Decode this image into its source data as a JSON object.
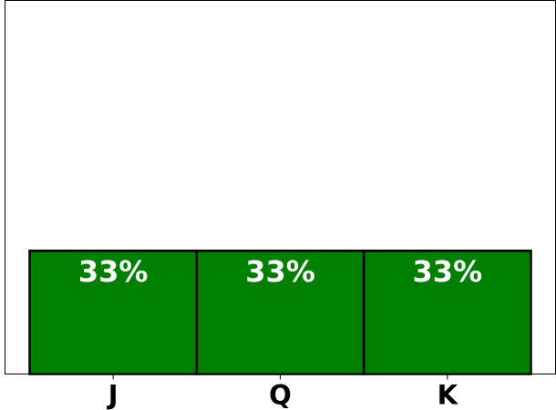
{
  "chart_data": {
    "type": "bar",
    "categories": [
      "J",
      "Q",
      "K"
    ],
    "values": [
      33,
      33,
      33
    ],
    "data_labels": [
      "33%",
      "33%",
      "33%"
    ],
    "title": "",
    "xlabel": "",
    "ylabel": "",
    "ylim": [
      0,
      100
    ],
    "grid": false,
    "legend": "none",
    "y_ticks_visible": false,
    "bar_color": "#008000",
    "bar_edge_color": "#000000",
    "label_color": "#ffffff"
  }
}
